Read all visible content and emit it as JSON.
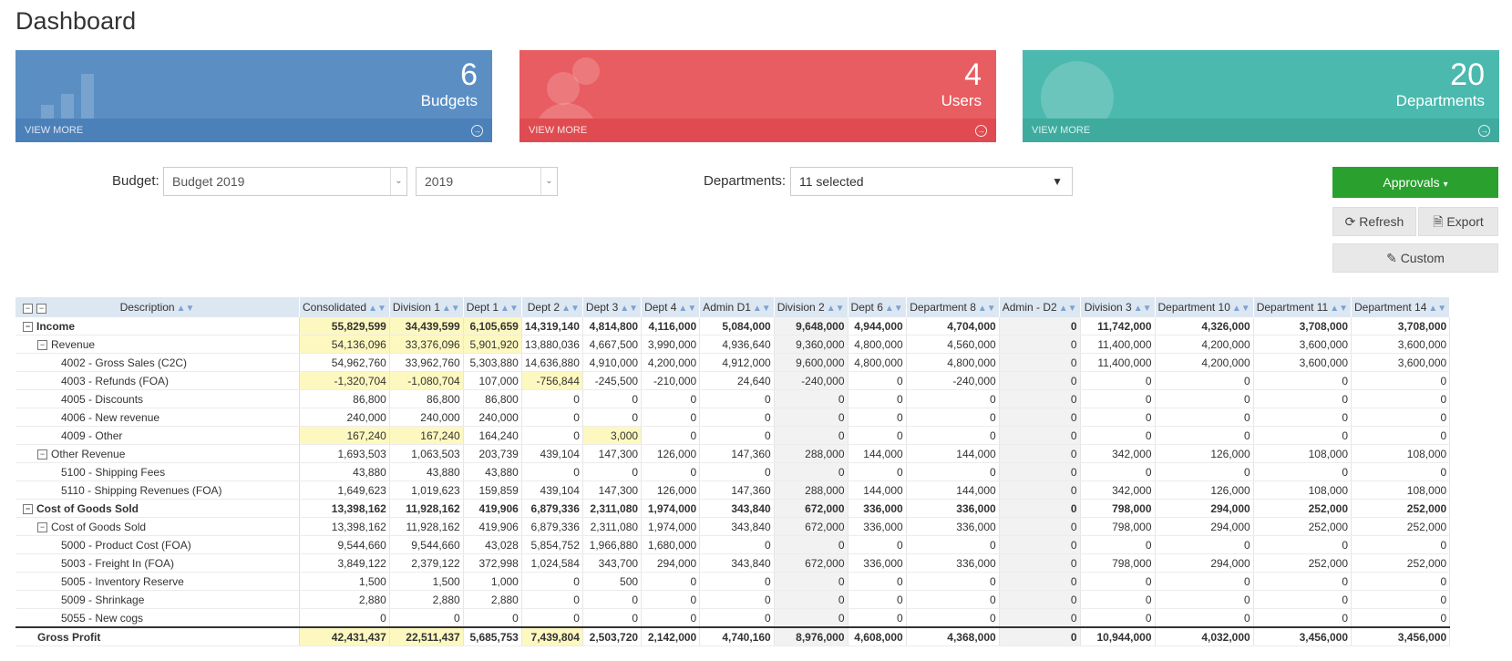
{
  "page": {
    "title": "Dashboard"
  },
  "cards": [
    {
      "count": "6",
      "label": "Budgets",
      "link": "VIEW MORE",
      "icon": "bar-chart-icon"
    },
    {
      "count": "4",
      "label": "Users",
      "link": "VIEW MORE",
      "icon": "users-icon"
    },
    {
      "count": "20",
      "label": "Departments",
      "link": "VIEW MORE",
      "icon": "globe-icon"
    }
  ],
  "filters": {
    "budget_label": "Budget:",
    "budget_value": "Budget 2019",
    "year_value": "2019",
    "departments_label": "Departments:",
    "departments_value": "11 selected"
  },
  "actions": {
    "approvals": "Approvals",
    "refresh": "Refresh",
    "export": "Export",
    "custom": "Custom"
  },
  "table": {
    "columns": [
      "Description",
      "Consolidated",
      "Division 1",
      "Dept 1",
      "Dept 2",
      "Dept 3",
      "Dept 4",
      "Admin D1",
      "Division 2",
      "Dept 6",
      "Department 8",
      "Admin - D2",
      "Division 3",
      "Department 10",
      "Department 11",
      "Department 14"
    ],
    "rows": [
      {
        "desc": "Income",
        "vals": [
          "55,829,599",
          "34,439,599",
          "6,105,659",
          "14,319,140",
          "4,814,800",
          "4,116,000",
          "5,084,000",
          "9,648,000",
          "4,944,000",
          "4,704,000",
          "0",
          "11,742,000",
          "4,326,000",
          "3,708,000",
          "3,708,000"
        ]
      },
      {
        "desc": "Revenue",
        "vals": [
          "54,136,096",
          "33,376,096",
          "5,901,920",
          "13,880,036",
          "4,667,500",
          "3,990,000",
          "4,936,640",
          "9,360,000",
          "4,800,000",
          "4,560,000",
          "0",
          "11,400,000",
          "4,200,000",
          "3,600,000",
          "3,600,000"
        ]
      },
      {
        "desc": "4002 - Gross Sales (C2C)",
        "vals": [
          "54,962,760",
          "33,962,760",
          "5,303,880",
          "14,636,880",
          "4,910,000",
          "4,200,000",
          "4,912,000",
          "9,600,000",
          "4,800,000",
          "4,800,000",
          "0",
          "11,400,000",
          "4,200,000",
          "3,600,000",
          "3,600,000"
        ]
      },
      {
        "desc": "4003 - Refunds (FOA)",
        "vals": [
          "-1,320,704",
          "-1,080,704",
          "107,000",
          "-756,844",
          "-245,500",
          "-210,000",
          "24,640",
          "-240,000",
          "0",
          "-240,000",
          "0",
          "0",
          "0",
          "0",
          "0"
        ]
      },
      {
        "desc": "4005 - Discounts",
        "vals": [
          "86,800",
          "86,800",
          "86,800",
          "0",
          "0",
          "0",
          "0",
          "0",
          "0",
          "0",
          "0",
          "0",
          "0",
          "0",
          "0"
        ]
      },
      {
        "desc": "4006 - New revenue",
        "vals": [
          "240,000",
          "240,000",
          "240,000",
          "0",
          "0",
          "0",
          "0",
          "0",
          "0",
          "0",
          "0",
          "0",
          "0",
          "0",
          "0"
        ]
      },
      {
        "desc": "4009 - Other",
        "vals": [
          "167,240",
          "167,240",
          "164,240",
          "0",
          "3,000",
          "0",
          "0",
          "0",
          "0",
          "0",
          "0",
          "0",
          "0",
          "0",
          "0"
        ]
      },
      {
        "desc": "Other Revenue",
        "vals": [
          "1,693,503",
          "1,063,503",
          "203,739",
          "439,104",
          "147,300",
          "126,000",
          "147,360",
          "288,000",
          "144,000",
          "144,000",
          "0",
          "342,000",
          "126,000",
          "108,000",
          "108,000"
        ]
      },
      {
        "desc": "5100 - Shipping Fees",
        "vals": [
          "43,880",
          "43,880",
          "43,880",
          "0",
          "0",
          "0",
          "0",
          "0",
          "0",
          "0",
          "0",
          "0",
          "0",
          "0",
          "0"
        ]
      },
      {
        "desc": "5110 - Shipping Revenues (FOA)",
        "vals": [
          "1,649,623",
          "1,019,623",
          "159,859",
          "439,104",
          "147,300",
          "126,000",
          "147,360",
          "288,000",
          "144,000",
          "144,000",
          "0",
          "342,000",
          "126,000",
          "108,000",
          "108,000"
        ]
      },
      {
        "desc": "Cost of Goods Sold",
        "vals": [
          "13,398,162",
          "11,928,162",
          "419,906",
          "6,879,336",
          "2,311,080",
          "1,974,000",
          "343,840",
          "672,000",
          "336,000",
          "336,000",
          "0",
          "798,000",
          "294,000",
          "252,000",
          "252,000"
        ]
      },
      {
        "desc": "Cost of Goods Sold",
        "vals": [
          "13,398,162",
          "11,928,162",
          "419,906",
          "6,879,336",
          "2,311,080",
          "1,974,000",
          "343,840",
          "672,000",
          "336,000",
          "336,000",
          "0",
          "798,000",
          "294,000",
          "252,000",
          "252,000"
        ]
      },
      {
        "desc": "5000 - Product Cost (FOA)",
        "vals": [
          "9,544,660",
          "9,544,660",
          "43,028",
          "5,854,752",
          "1,966,880",
          "1,680,000",
          "0",
          "0",
          "0",
          "0",
          "0",
          "0",
          "0",
          "0",
          "0"
        ]
      },
      {
        "desc": "5003 - Freight In (FOA)",
        "vals": [
          "3,849,122",
          "2,379,122",
          "372,998",
          "1,024,584",
          "343,700",
          "294,000",
          "343,840",
          "672,000",
          "336,000",
          "336,000",
          "0",
          "798,000",
          "294,000",
          "252,000",
          "252,000"
        ]
      },
      {
        "desc": "5005 - Inventory Reserve",
        "vals": [
          "1,500",
          "1,500",
          "1,000",
          "0",
          "500",
          "0",
          "0",
          "0",
          "0",
          "0",
          "0",
          "0",
          "0",
          "0",
          "0"
        ]
      },
      {
        "desc": "5009 - Shrinkage",
        "vals": [
          "2,880",
          "2,880",
          "2,880",
          "0",
          "0",
          "0",
          "0",
          "0",
          "0",
          "0",
          "0",
          "0",
          "0",
          "0",
          "0"
        ]
      },
      {
        "desc": "5055 - New cogs",
        "vals": [
          "0",
          "0",
          "0",
          "0",
          "0",
          "0",
          "0",
          "0",
          "0",
          "0",
          "0",
          "0",
          "0",
          "0",
          "0"
        ]
      },
      {
        "desc": "Gross Profit",
        "vals": [
          "42,431,437",
          "22,511,437",
          "5,685,753",
          "7,439,804",
          "2,503,720",
          "2,142,000",
          "4,740,160",
          "8,976,000",
          "4,608,000",
          "4,368,000",
          "0",
          "10,944,000",
          "4,032,000",
          "3,456,000",
          "3,456,000"
        ]
      }
    ]
  }
}
